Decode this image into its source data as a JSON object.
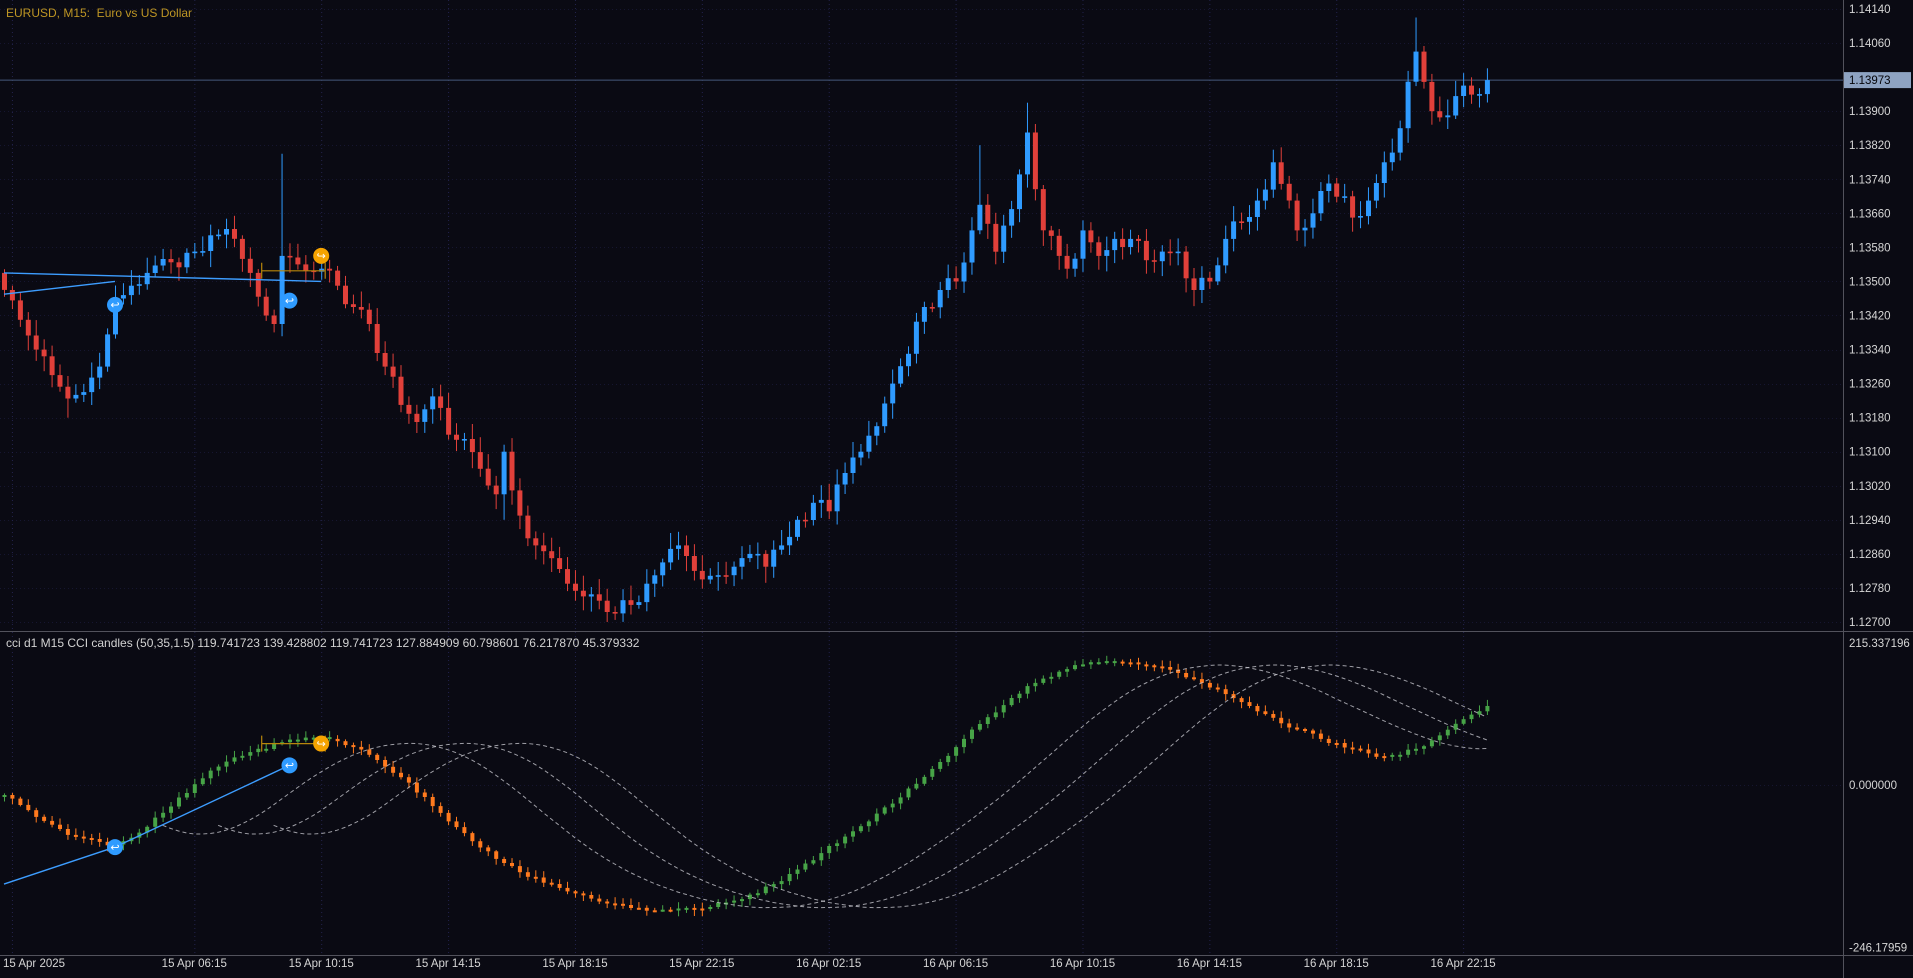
{
  "colors": {
    "background": "#0a0a13",
    "grid": "#23234d",
    "bull": "#2f9bff",
    "bear": "#e1403a",
    "title_text": "#bd9524",
    "axis_text": "#d6d6d6",
    "separator": "#52525c",
    "price_line": "#46597c",
    "price_tag_bg": "#8ea3c2",
    "price_tag_text": "#05050a",
    "cci_up": "#47a447",
    "cci_down": "#ff7a1e",
    "cci_ma": "#c4c4cc",
    "trendline": "#3d9dff",
    "bracket": "#b8860b",
    "marker_blue": "#2f9bff",
    "marker_orange": "#f5a300"
  },
  "chart_data": [
    {
      "type": "candlestick",
      "title": "EURUSD, M15:  Euro vs US Dollar",
      "symbol": "EURUSD",
      "period": "M15",
      "price_axis": {
        "ticks": [
          "1.14140",
          "1.14060",
          "1.13900",
          "1.13820",
          "1.13740",
          "1.13660",
          "1.13580",
          "1.13500",
          "1.13420",
          "1.13340",
          "1.13260",
          "1.13180",
          "1.13100",
          "1.13020",
          "1.12940",
          "1.12860",
          "1.12780",
          "1.12700"
        ],
        "top_value": 1.1414,
        "bottom_value": 1.127,
        "current_price": "1.13973"
      },
      "candle_count": 188,
      "close_keyframes": [
        [
          0,
          1.1348
        ],
        [
          2,
          1.1341
        ],
        [
          4,
          1.1334
        ],
        [
          6,
          1.1328
        ],
        [
          8,
          1.13225
        ],
        [
          10,
          1.1324
        ],
        [
          12,
          1.133
        ],
        [
          14,
          1.1346
        ],
        [
          16,
          1.1349
        ],
        [
          18,
          1.1352
        ],
        [
          21,
          1.13545
        ],
        [
          24,
          1.1357
        ],
        [
          27,
          1.1361
        ],
        [
          29,
          1.136
        ],
        [
          31,
          1.1352
        ],
        [
          33,
          1.1342
        ],
        [
          34,
          1.134
        ],
        [
          35,
          1.1356
        ],
        [
          37,
          1.1354
        ],
        [
          40,
          1.1353
        ],
        [
          42,
          1.1349
        ],
        [
          44,
          1.1344
        ],
        [
          46,
          1.134
        ],
        [
          48,
          1.133
        ],
        [
          50,
          1.1321
        ],
        [
          52,
          1.1317
        ],
        [
          54,
          1.1323
        ],
        [
          56,
          1.1314
        ],
        [
          58,
          1.1313
        ],
        [
          60,
          1.1306
        ],
        [
          62,
          1.13
        ],
        [
          63,
          1.131
        ],
        [
          65,
          1.1295
        ],
        [
          67,
          1.1288
        ],
        [
          69,
          1.1285
        ],
        [
          71,
          1.1279
        ],
        [
          73,
          1.1276
        ],
        [
          75,
          1.1275
        ],
        [
          77,
          1.1272
        ],
        [
          79,
          1.1274
        ],
        [
          81,
          1.1279
        ],
        [
          83,
          1.1284
        ],
        [
          85,
          1.1288
        ],
        [
          87,
          1.1282
        ],
        [
          88,
          1.128
        ],
        [
          90,
          1.1281
        ],
        [
          92,
          1.1283
        ],
        [
          94,
          1.1286
        ],
        [
          96,
          1.1283
        ],
        [
          98,
          1.1288
        ],
        [
          100,
          1.1294
        ],
        [
          102,
          1.1298
        ],
        [
          104,
          1.1296
        ],
        [
          106,
          1.1305
        ],
        [
          108,
          1.131
        ],
        [
          110,
          1.1316
        ],
        [
          112,
          1.1326
        ],
        [
          114,
          1.1333
        ],
        [
          116,
          1.1344
        ],
        [
          118,
          1.1348
        ],
        [
          120,
          1.135
        ],
        [
          122,
          1.1362
        ],
        [
          123,
          1.1368
        ],
        [
          125,
          1.1357
        ],
        [
          127,
          1.1367
        ],
        [
          129,
          1.1385
        ],
        [
          131,
          1.1362
        ],
        [
          133,
          1.1356
        ],
        [
          134,
          1.1353
        ],
        [
          136,
          1.1362
        ],
        [
          138,
          1.1356
        ],
        [
          140,
          1.136
        ],
        [
          142,
          1.136
        ],
        [
          144,
          1.1355
        ],
        [
          146,
          1.1357
        ],
        [
          148,
          1.1357
        ],
        [
          150,
          1.1348
        ],
        [
          152,
          1.135
        ],
        [
          154,
          1.136
        ],
        [
          156,
          1.1364
        ],
        [
          158,
          1.1369
        ],
        [
          160,
          1.1378
        ],
        [
          162,
          1.1369
        ],
        [
          163,
          1.1362
        ],
        [
          165,
          1.1366
        ],
        [
          167,
          1.1373
        ],
        [
          169,
          1.137
        ],
        [
          170,
          1.1365
        ],
        [
          172,
          1.1369
        ],
        [
          174,
          1.1378
        ],
        [
          176,
          1.1386
        ],
        [
          178,
          1.1404
        ],
        [
          180,
          1.139
        ],
        [
          182,
          1.1389
        ],
        [
          184,
          1.1396
        ],
        [
          186,
          1.1394
        ],
        [
          187,
          1.13973
        ]
      ],
      "wick_overrides": {
        "8": {
          "l": 1.1318
        },
        "35": {
          "h": 1.138
        },
        "63": {
          "l": 1.1294
        },
        "76": {
          "l": 1.127
        },
        "77": {
          "l": 1.12705
        },
        "123": {
          "h": 1.1382
        },
        "129": {
          "h": 1.1392
        },
        "178": {
          "h": 1.1412
        }
      },
      "trendlines": [
        {
          "points": [
            [
              0,
              1.1352
            ],
            [
              40,
              1.135
            ]
          ]
        },
        {
          "points": [
            [
              0,
              1.1347
            ],
            [
              14,
              1.135
            ]
          ]
        }
      ],
      "bracket": {
        "from": 32.5,
        "to": 40.5,
        "level": 1.13525
      },
      "markers": [
        {
          "index": 14,
          "level": 1.13445,
          "color": "blue",
          "glyph": "↩"
        },
        {
          "index": 36,
          "level": 1.13455,
          "color": "blue",
          "glyph": "↩"
        },
        {
          "index": 40,
          "level": 1.1356,
          "color": "orange",
          "glyph": "↪"
        }
      ]
    },
    {
      "type": "indicator",
      "name": "CCI candles",
      "title": "cci d1 M15 CCI candles (50,35,1.5) 119.741723 139.428802 119.741723 127.884909 60.798601 76.217870 45.379332",
      "axis": {
        "ticks": [
          [
            "215.337196",
            215.337196
          ],
          [
            "0.000000",
            0
          ],
          [
            "-246.17959",
            -246.17959
          ]
        ]
      },
      "value_keyframes": [
        [
          0,
          -15
        ],
        [
          3,
          -38
        ],
        [
          6,
          -60
        ],
        [
          9,
          -78
        ],
        [
          12,
          -86
        ],
        [
          14,
          -90
        ],
        [
          17,
          -72
        ],
        [
          20,
          -42
        ],
        [
          23,
          -12
        ],
        [
          26,
          22
        ],
        [
          29,
          42
        ],
        [
          32,
          55
        ],
        [
          35,
          65
        ],
        [
          38,
          72
        ],
        [
          41,
          70
        ],
        [
          44,
          58
        ],
        [
          47,
          38
        ],
        [
          50,
          12
        ],
        [
          53,
          -18
        ],
        [
          56,
          -55
        ],
        [
          59,
          -85
        ],
        [
          62,
          -112
        ],
        [
          65,
          -132
        ],
        [
          68,
          -148
        ],
        [
          71,
          -161
        ],
        [
          74,
          -172
        ],
        [
          77,
          -180
        ],
        [
          80,
          -186
        ],
        [
          84,
          -190
        ],
        [
          88,
          -187
        ],
        [
          91,
          -178
        ],
        [
          94,
          -166
        ],
        [
          97,
          -150
        ],
        [
          100,
          -128
        ],
        [
          103,
          -103
        ],
        [
          106,
          -78
        ],
        [
          109,
          -55
        ],
        [
          112,
          -28
        ],
        [
          115,
          2
        ],
        [
          118,
          35
        ],
        [
          121,
          70
        ],
        [
          124,
          103
        ],
        [
          127,
          132
        ],
        [
          130,
          155
        ],
        [
          133,
          172
        ],
        [
          136,
          183
        ],
        [
          139,
          188
        ],
        [
          142,
          186
        ],
        [
          145,
          180
        ],
        [
          148,
          170
        ],
        [
          151,
          155
        ],
        [
          154,
          138
        ],
        [
          157,
          120
        ],
        [
          160,
          102
        ],
        [
          163,
          85
        ],
        [
          166,
          70
        ],
        [
          169,
          57
        ],
        [
          172,
          48
        ],
        [
          174,
          44
        ],
        [
          176,
          46
        ],
        [
          178,
          55
        ],
        [
          180,
          68
        ],
        [
          182,
          84
        ],
        [
          184,
          100
        ],
        [
          186,
          112
        ],
        [
          187,
          120
        ]
      ],
      "ma_window": 15,
      "ma_shifts": [
        13,
        20,
        27
      ],
      "trendlines": [
        {
          "points": [
            [
              0,
              -150
            ],
            [
              14,
              -94
            ],
            [
              36,
              30
            ]
          ]
        }
      ],
      "bracket": {
        "from": 32.5,
        "to": 40.5,
        "level": 63
      },
      "markers": [
        {
          "index": 14,
          "level": -94,
          "color": "blue",
          "glyph": "↩"
        },
        {
          "index": 36,
          "level": 30,
          "color": "blue",
          "glyph": "↩"
        },
        {
          "index": 40,
          "level": 63,
          "color": "orange",
          "glyph": "↪"
        }
      ]
    }
  ],
  "time_axis": {
    "labels": [
      {
        "index": 1,
        "text": "15 Apr 2025"
      },
      {
        "index": 24,
        "text": "15 Apr 06:15"
      },
      {
        "index": 40,
        "text": "15 Apr 10:15"
      },
      {
        "index": 56,
        "text": "15 Apr 14:15"
      },
      {
        "index": 72,
        "text": "15 Apr 18:15"
      },
      {
        "index": 88,
        "text": "15 Apr 22:15"
      },
      {
        "index": 104,
        "text": "16 Apr 02:15"
      },
      {
        "index": 120,
        "text": "16 Apr 06:15"
      },
      {
        "index": 136,
        "text": "16 Apr 10:15"
      },
      {
        "index": 152,
        "text": "16 Apr 14:15"
      },
      {
        "index": 168,
        "text": "16 Apr 18:15"
      },
      {
        "index": 184,
        "text": "16 Apr 22:15"
      }
    ]
  }
}
